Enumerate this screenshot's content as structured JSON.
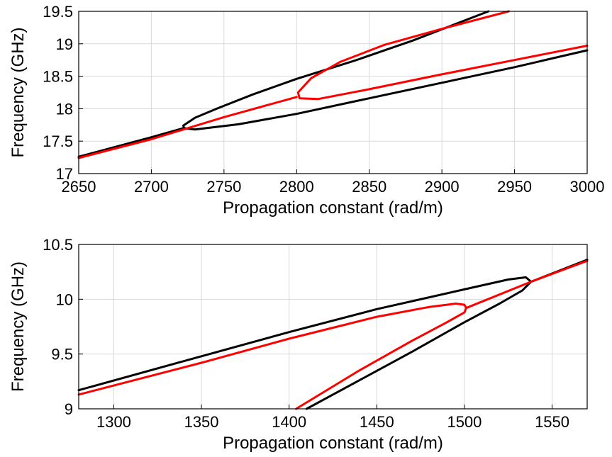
{
  "chart_data": [
    {
      "type": "line",
      "title": "",
      "xlabel": "Propagation constant (rad/m)",
      "ylabel": "Frequency (GHz)",
      "xlim": [
        2650,
        3000
      ],
      "ylim": [
        17,
        19.5
      ],
      "xticks": [
        2650,
        2700,
        2750,
        2800,
        2850,
        2900,
        2950,
        3000
      ],
      "yticks": [
        17,
        17.5,
        18,
        18.5,
        19,
        19.5
      ],
      "xtick_labels": [
        "2650",
        "2700",
        "2750",
        "2800",
        "2850",
        "2900",
        "2950",
        "3000"
      ],
      "ytick_labels": [
        "17",
        "17.5",
        "18",
        "18.5",
        "19",
        "19.5"
      ],
      "grid": true,
      "legend": "none",
      "series": [
        {
          "color": "#000000",
          "x": [
            2932,
            2880,
            2840,
            2800,
            2770,
            2745,
            2730,
            2722,
            2722.5,
            2730,
            2760,
            2800,
            2850,
            2900,
            2950,
            3000
          ],
          "y": [
            19.5,
            19.05,
            18.74,
            18.46,
            18.22,
            18.0,
            17.86,
            17.74,
            17.7,
            17.68,
            17.76,
            17.92,
            18.16,
            18.4,
            18.64,
            18.9
          ]
        },
        {
          "color": "#000000",
          "x": [
            2650,
            2700,
            2722
          ],
          "y": [
            17.26,
            17.56,
            17.7
          ]
        },
        {
          "color": "#ff0000",
          "x": [
            2650,
            2700,
            2750,
            2800
          ],
          "y": [
            17.24,
            17.53,
            17.87,
            18.18
          ]
        },
        {
          "color": "#ff0000",
          "x": [
            2946,
            2900,
            2860,
            2830,
            2810,
            2801,
            2802,
            2815,
            2850,
            2900,
            2950,
            3000
          ],
          "y": [
            19.5,
            19.23,
            18.98,
            18.72,
            18.47,
            18.25,
            18.16,
            18.15,
            18.3,
            18.53,
            18.75,
            18.97
          ]
        }
      ]
    },
    {
      "type": "line",
      "title": "",
      "xlabel": "Propagation constant (rad/m)",
      "ylabel": "Frequency (GHz)",
      "xlim": [
        1280,
        1570
      ],
      "ylim": [
        9,
        10.5
      ],
      "xticks": [
        1300,
        1350,
        1400,
        1450,
        1500,
        1550
      ],
      "yticks": [
        9,
        9.5,
        10,
        10.5
      ],
      "xtick_labels": [
        "1300",
        "1350",
        "1400",
        "1450",
        "1500",
        "1550"
      ],
      "ytick_labels": [
        "9",
        "9.5",
        "10",
        "10.5"
      ],
      "grid": true,
      "legend": "none",
      "series": [
        {
          "color": "#000000",
          "x": [
            1280,
            1350,
            1400,
            1450,
            1500,
            1525,
            1535,
            1538,
            1533,
            1520,
            1500,
            1470,
            1440,
            1410
          ],
          "y": [
            9.17,
            9.48,
            9.7,
            9.91,
            10.09,
            10.18,
            10.2,
            10.16,
            10.08,
            9.96,
            9.79,
            9.52,
            9.26,
            9.0
          ]
        },
        {
          "color": "#000000",
          "x": [
            1538,
            1570
          ],
          "y": [
            10.16,
            10.36
          ]
        },
        {
          "color": "#ff0000",
          "x": [
            1280,
            1350,
            1400,
            1450,
            1480,
            1495,
            1500,
            1501,
            1500,
            1490,
            1470,
            1440,
            1404
          ],
          "y": [
            9.13,
            9.42,
            9.64,
            9.84,
            9.93,
            9.96,
            9.95,
            9.92,
            9.88,
            9.79,
            9.62,
            9.35,
            9.0
          ]
        },
        {
          "color": "#ff0000",
          "x": [
            1501,
            1538,
            1570
          ],
          "y": [
            9.92,
            10.16,
            10.35
          ]
        }
      ]
    }
  ]
}
